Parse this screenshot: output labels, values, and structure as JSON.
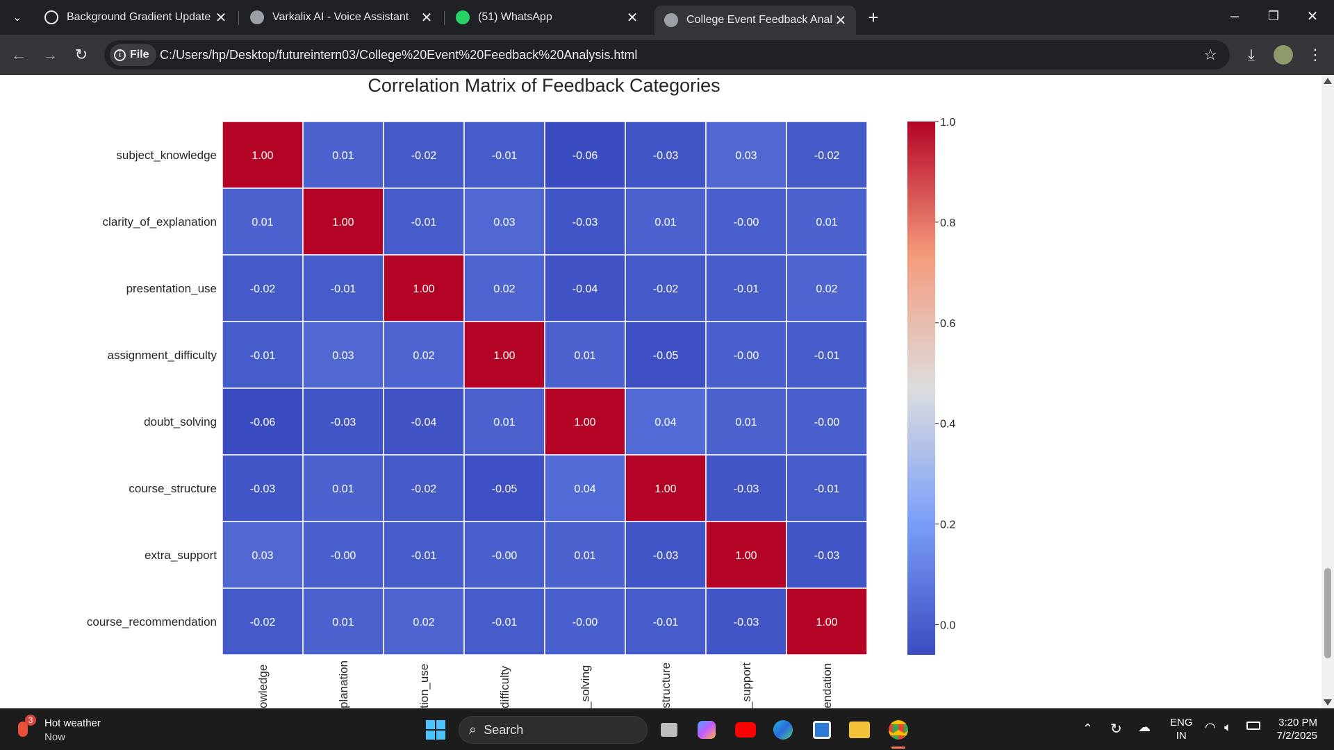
{
  "browser": {
    "tabs": [
      {
        "label": "Background Gradient Update",
        "icon": "chatgpt-icon",
        "active": false
      },
      {
        "label": "Varkalix AI - Voice Assistant",
        "icon": "globe-icon",
        "active": false
      },
      {
        "label": "(51) WhatsApp",
        "icon": "whatsapp-icon",
        "active": false
      },
      {
        "label": "College Event Feedback Analysi",
        "icon": "globe-icon",
        "active": true
      }
    ],
    "chip_label": "File",
    "url": "C:/Users/hp/Desktop/futureintern03/College%20Event%20Feedback%20Analysis.html"
  },
  "chart_data": {
    "type": "heatmap",
    "title": "Correlation Matrix of Feedback Categories",
    "rows": [
      "subject_knowledge",
      "clarity_of_explanation",
      "presentation_use",
      "assignment_difficulty",
      "doubt_solving",
      "course_structure",
      "extra_support",
      "course_recommendation"
    ],
    "x_tick_labels_visible": [
      "owledge",
      "planation",
      "tion_use",
      "difficulty",
      "_solving",
      "structure",
      "_support",
      "endation"
    ],
    "values": [
      [
        1.0,
        0.01,
        -0.02,
        -0.01,
        -0.06,
        -0.03,
        0.03,
        -0.02
      ],
      [
        0.01,
        1.0,
        -0.01,
        0.03,
        -0.03,
        0.01,
        -0.0,
        0.01
      ],
      [
        -0.02,
        -0.01,
        1.0,
        0.02,
        -0.04,
        -0.02,
        -0.01,
        0.02
      ],
      [
        -0.01,
        0.03,
        0.02,
        1.0,
        0.01,
        -0.05,
        -0.0,
        -0.01
      ],
      [
        -0.06,
        -0.03,
        -0.04,
        0.01,
        1.0,
        0.04,
        0.01,
        -0.0
      ],
      [
        -0.03,
        0.01,
        -0.02,
        -0.05,
        0.04,
        1.0,
        -0.03,
        -0.01
      ],
      [
        0.03,
        -0.0,
        -0.01,
        -0.0,
        0.01,
        -0.03,
        1.0,
        -0.03
      ],
      [
        -0.02,
        0.01,
        0.02,
        -0.01,
        -0.0,
        -0.01,
        -0.03,
        1.0
      ]
    ],
    "value_labels": [
      [
        "1.00",
        "0.01",
        "-0.02",
        "-0.01",
        "-0.06",
        "-0.03",
        "0.03",
        "-0.02"
      ],
      [
        "0.01",
        "1.00",
        "-0.01",
        "0.03",
        "-0.03",
        "0.01",
        "-0.00",
        "0.01"
      ],
      [
        "-0.02",
        "-0.01",
        "1.00",
        "0.02",
        "-0.04",
        "-0.02",
        "-0.01",
        "0.02"
      ],
      [
        "-0.01",
        "0.03",
        "0.02",
        "1.00",
        "0.01",
        "-0.05",
        "-0.00",
        "-0.01"
      ],
      [
        "-0.06",
        "-0.03",
        "-0.04",
        "0.01",
        "1.00",
        "0.04",
        "0.01",
        "-0.00"
      ],
      [
        "-0.03",
        "0.01",
        "-0.02",
        "-0.05",
        "0.04",
        "1.00",
        "-0.03",
        "-0.01"
      ],
      [
        "0.03",
        "-0.00",
        "-0.01",
        "-0.00",
        "0.01",
        "-0.03",
        "1.00",
        "-0.03"
      ],
      [
        "-0.02",
        "0.01",
        "0.02",
        "-0.01",
        "-0.00",
        "-0.01",
        "-0.03",
        "1.00"
      ]
    ],
    "colormap": "coolwarm",
    "vmin": -0.06,
    "vmax": 1.0,
    "colorbar_ticks": [
      0.0,
      0.2,
      0.4,
      0.6,
      0.8,
      1.0
    ],
    "colorbar_tick_labels": [
      "0.0",
      "0.2",
      "0.4",
      "0.6",
      "0.8",
      "1.0"
    ]
  },
  "taskbar": {
    "weather_badge": "3",
    "weather_title": "Hot weather",
    "weather_subtitle": "Now",
    "search_label": "Search",
    "lang_top": "ENG",
    "lang_bottom": "IN",
    "time": "3:20 PM",
    "date": "7/2/2025"
  }
}
